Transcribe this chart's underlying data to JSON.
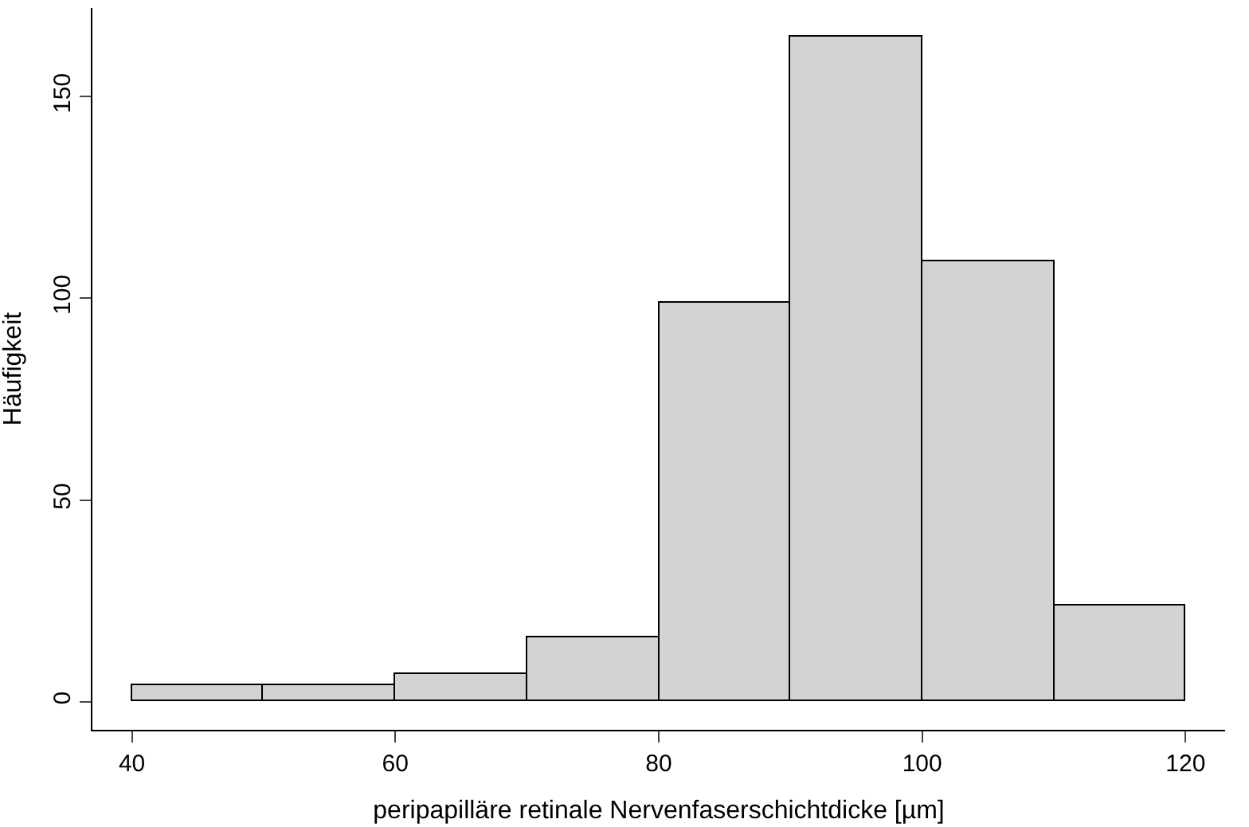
{
  "chart_data": {
    "type": "histogram",
    "xlabel": "peripapilläre retinale Nervenfaserschichtdicke [µm]",
    "ylabel": "Häufigkeit",
    "bins": [
      40,
      50,
      60,
      70,
      80,
      90,
      100,
      110,
      120
    ],
    "values": [
      4,
      4,
      7,
      16,
      99,
      165,
      109,
      24
    ],
    "color": "#d3d3d3",
    "xlim": [
      37,
      123
    ],
    "xticks": [
      40,
      60,
      80,
      100,
      120
    ],
    "ylim": [
      -7,
      172
    ],
    "yticks": [
      0,
      50,
      100,
      150
    ]
  }
}
